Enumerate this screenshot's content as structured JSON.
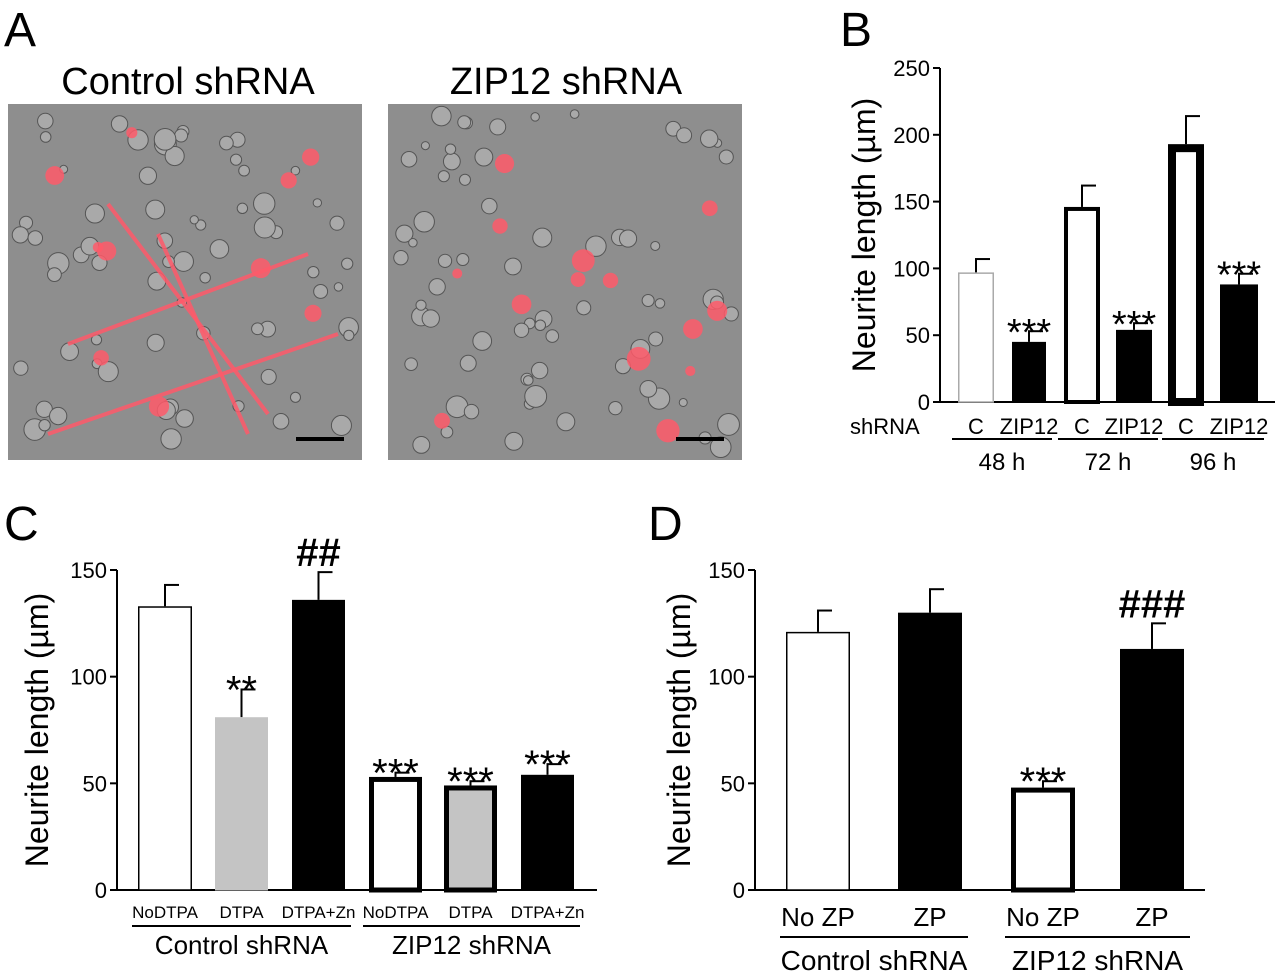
{
  "panel_labels": {
    "a": "A",
    "b": "B",
    "c": "C",
    "d": "D"
  },
  "panel_a": {
    "images": [
      {
        "title": "Control shRNA"
      },
      {
        "title": "ZIP12 shRNA"
      }
    ],
    "colors": {
      "background": "#8e8e8e",
      "stain": "#ff5a6a",
      "scale_bar": "#000000"
    }
  },
  "chart_data": [
    {
      "id": "B",
      "type": "bar",
      "ylabel": "Neurite length (µm)",
      "ylim": [
        0,
        250
      ],
      "yticks": [
        0,
        50,
        100,
        150,
        200,
        250
      ],
      "row_label": "shRNA",
      "categories": [
        "C",
        "ZIP12",
        "C",
        "ZIP12",
        "C",
        "ZIP12"
      ],
      "groups": [
        {
          "label": "48 h",
          "members": [
            0,
            1
          ]
        },
        {
          "label": "72 h",
          "members": [
            2,
            3
          ]
        },
        {
          "label": "96 h",
          "members": [
            4,
            5
          ]
        }
      ],
      "values": [
        97,
        45,
        146,
        54,
        193,
        88
      ],
      "errors": [
        10,
        8,
        16,
        5,
        21,
        8
      ],
      "annotations": [
        "",
        "***",
        "",
        "***",
        "",
        "***"
      ]
    },
    {
      "id": "C",
      "type": "bar",
      "ylabel": "Neurite length (µm)",
      "ylim": [
        0,
        150
      ],
      "yticks": [
        0,
        50,
        100,
        150
      ],
      "categories": [
        "NoDTPA",
        "DTPA",
        "DTPA+Zn",
        "NoDTPA",
        "DTPA",
        "DTPA+Zn"
      ],
      "groups": [
        {
          "label": "Control shRNA",
          "members": [
            0,
            1,
            2
          ]
        },
        {
          "label": "ZIP12 shRNA",
          "members": [
            3,
            4,
            5
          ]
        }
      ],
      "values": [
        133,
        81,
        136,
        53,
        49,
        54
      ],
      "errors": [
        10,
        13,
        13,
        2,
        2,
        5
      ],
      "annotations": [
        "",
        "**",
        "##",
        "***",
        "***",
        "***"
      ]
    },
    {
      "id": "D",
      "type": "bar",
      "ylabel": "Neurite length (µm)",
      "ylim": [
        0,
        150
      ],
      "yticks": [
        0,
        50,
        100,
        150
      ],
      "categories": [
        "No ZP",
        "ZP",
        "No ZP",
        "ZP"
      ],
      "groups": [
        {
          "label": "Control shRNA",
          "members": [
            0,
            1
          ]
        },
        {
          "label": "ZIP12 shRNA",
          "members": [
            2,
            3
          ]
        }
      ],
      "values": [
        121,
        130,
        48,
        113
      ],
      "errors": [
        10,
        11,
        3,
        12
      ],
      "annotations": [
        "",
        "",
        "***",
        "###"
      ]
    }
  ]
}
